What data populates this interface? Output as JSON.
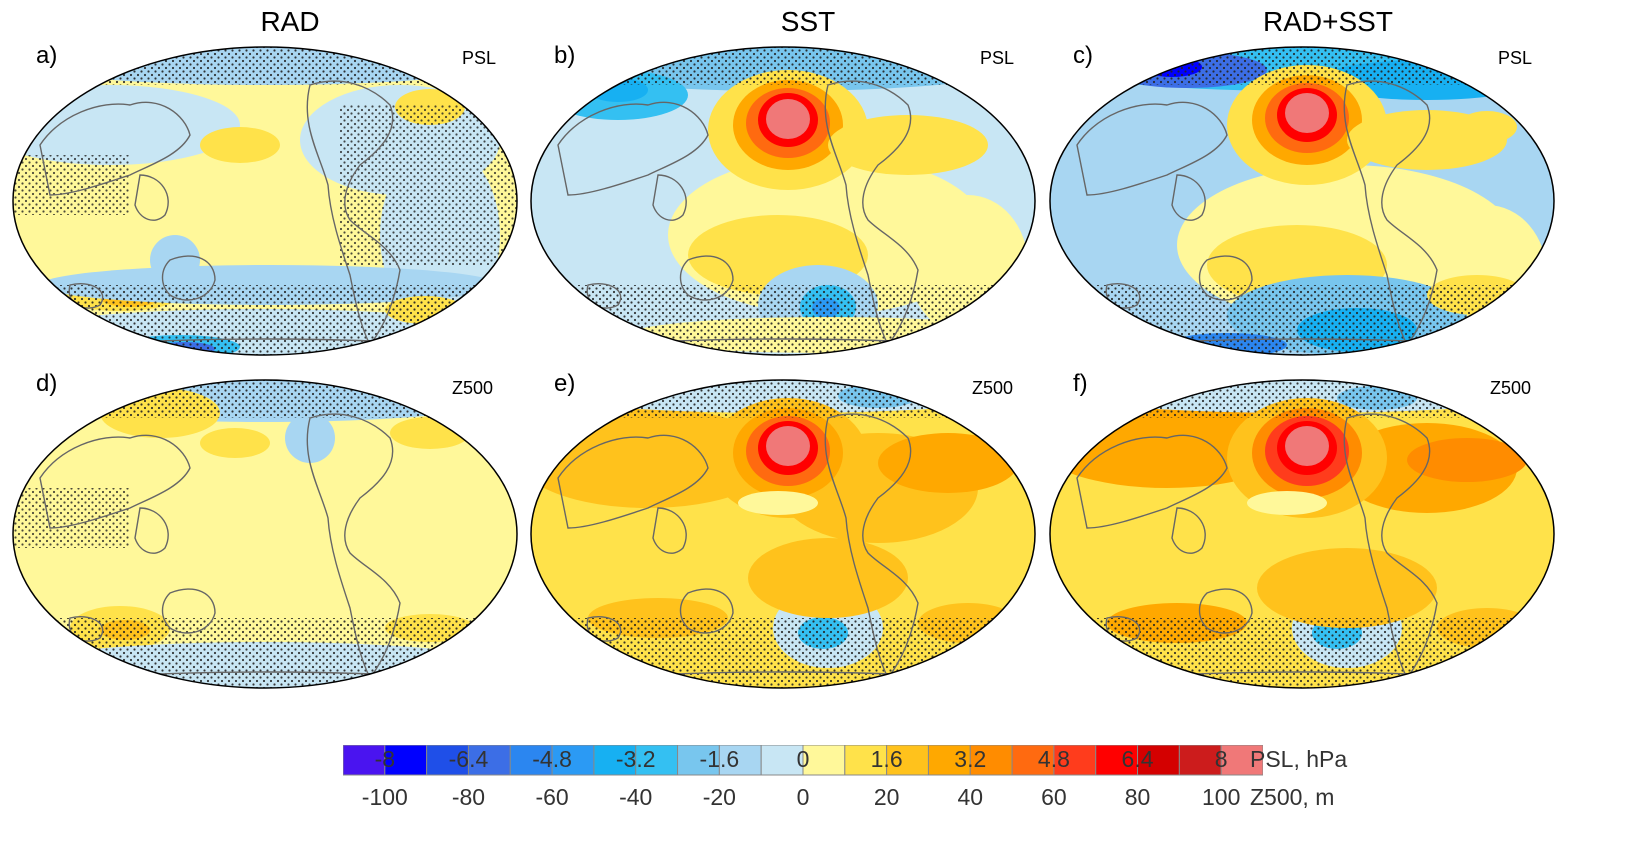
{
  "columns": [
    "RAD",
    "SST",
    "RAD+SST"
  ],
  "panels": [
    {
      "letter": "a)",
      "variable": "PSL"
    },
    {
      "letter": "b)",
      "variable": "PSL"
    },
    {
      "letter": "c)",
      "variable": "PSL"
    },
    {
      "letter": "d)",
      "variable": "Z500"
    },
    {
      "letter": "e)",
      "variable": "Z500"
    },
    {
      "letter": "f)",
      "variable": "Z500"
    }
  ],
  "colorbar": {
    "colors": [
      "#4a14f0",
      "#0000ff",
      "#1f4fe8",
      "#3c6ee6",
      "#2b86f0",
      "#2b9af4",
      "#17b0f2",
      "#34c0f2",
      "#78c6ee",
      "#a8d6f2",
      "#c8e6f4",
      "#fff89a",
      "#ffe24a",
      "#ffc21c",
      "#ffa800",
      "#ff8c00",
      "#ff6a10",
      "#ff3c1c",
      "#ff0000",
      "#d40000",
      "#cc1c1c",
      "#f07878"
    ],
    "psl_ticks": [
      "-8",
      "-6.4",
      "-4.8",
      "-3.2",
      "-1.6",
      "0",
      "1.6",
      "3.2",
      "4.8",
      "6.4",
      "8"
    ],
    "psl_label": "PSL, hPa",
    "z500_ticks": [
      "-100",
      "-80",
      "-60",
      "-40",
      "-20",
      "0",
      "20",
      "40",
      "60",
      "80",
      "100"
    ],
    "z500_label": "Z500, m"
  }
}
